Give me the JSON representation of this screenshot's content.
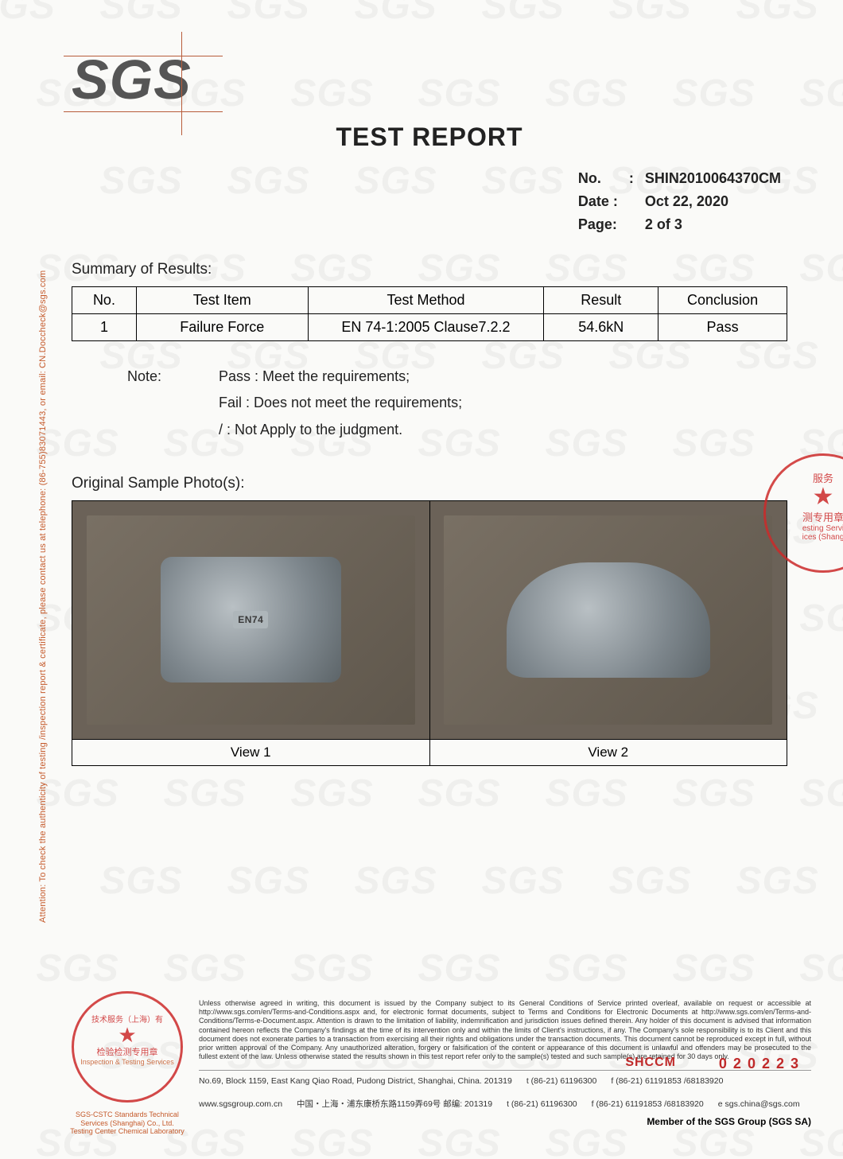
{
  "logo_text": "SGS",
  "title": "TEST REPORT",
  "meta": {
    "no_label": "No.",
    "no_value": "SHIN2010064370CM",
    "date_label": "Date :",
    "date_value": "Oct 22, 2020",
    "page_label": "Page:",
    "page_value": "2 of 3"
  },
  "summary_label": "Summary of Results:",
  "results": {
    "headers": {
      "no": "No.",
      "item": "Test Item",
      "method": "Test Method",
      "result": "Result",
      "conclusion": "Conclusion"
    },
    "rows": [
      {
        "no": "1",
        "item": "Failure Force",
        "method": "EN 74-1:2005 Clause7.2.2",
        "result": "54.6kN",
        "conclusion": "Pass"
      }
    ]
  },
  "note": {
    "label": "Note:",
    "pass": "Pass : Meet the requirements;",
    "fail": "Fail : Does not meet the requirements;",
    "na": "/ : Not Apply to the judgment."
  },
  "photos_label": "Original Sample Photo(s):",
  "photos": {
    "view1": {
      "caption": "View 1",
      "marking": "EN74"
    },
    "view2": {
      "caption": "View 2"
    }
  },
  "side_attention": "Attention: To check the authenticity of testing /inspection report & certificate, please contact us at telephone: (86-755)83071443, or email: CN.Doccheck@sgs.com",
  "stamp_right": {
    "line1": "服务",
    "line2": "测专用章",
    "line3": "esting Servi",
    "line4": "ices (Shang"
  },
  "footer_stamp": {
    "ring": "技术服务（上海）有",
    "line1": "检验检测专用章",
    "line2": "Inspection & Testing Services"
  },
  "footer_stamp_sub1": "SGS-CSTC Standards Technical Services (Shanghai) Co., Ltd.",
  "footer_stamp_sub2": "Testing Center Chemical Laboratory",
  "disclaimer": "Unless otherwise agreed in writing, this document is issued by the Company subject to its General Conditions of Service printed overleaf, available on request or accessible at http://www.sgs.com/en/Terms-and-Conditions.aspx and, for electronic format documents, subject to Terms and Conditions for Electronic Documents at http://www.sgs.com/en/Terms-and-Conditions/Terms-e-Document.aspx. Attention is drawn to the limitation of liability, indemnification and jurisdiction issues defined therein. Any holder of this document is advised that information contained hereon reflects the Company's findings at the time of its intervention only and within the limits of Client's instructions, if any. The Company's sole responsibility is to its Client and this document does not exonerate parties to a transaction from exercising all their rights and obligations under the transaction documents. This document cannot be reproduced except in full, without prior written approval of the Company. Any unauthorized alteration, forgery or falsification of the content or appearance of this document is unlawful and offenders may be prosecuted to the fullest extent of the law. Unless otherwise stated the results shown in this test report refer only to the sample(s) tested and such sample(s) are retained for 30 days only.",
  "footer": {
    "shccm": "SHCCM",
    "ref": "020223",
    "addr_en": "No.69, Block 1159, East Kang Qiao Road, Pudong District, Shanghai, China. 201319",
    "addr_cn": "中国・上海・浦东康桥东路1159弄69号  邮编: 201319",
    "tel1": "t (86-21) 61196300",
    "fax1": "f (86-21) 61191853 /68183920",
    "web": "www.sgsgroup.com.cn",
    "tel2": "t (86-21) 61196300",
    "fax2": "f (86-21) 61191853 /68183920",
    "email": "e  sgs.china@sgs.com"
  },
  "member": "Member of the SGS Group (SGS SA)",
  "colors": {
    "accent": "#b85c3a",
    "stamp": "#cc2a2a",
    "text": "#222222"
  }
}
